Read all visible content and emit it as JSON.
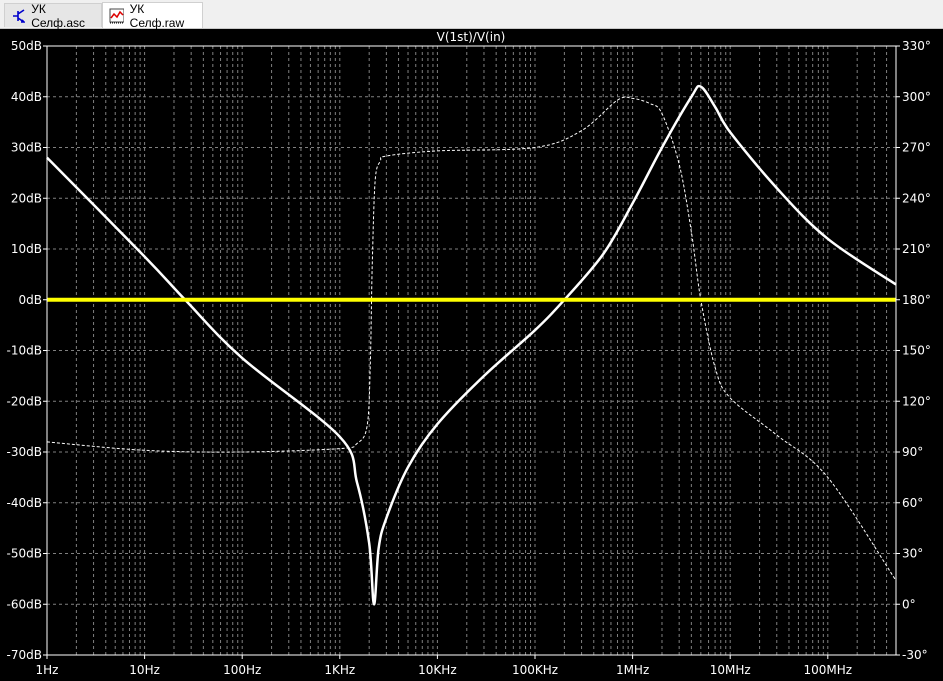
{
  "tabs": [
    {
      "label": "УК Селф.asc",
      "icon": "schematic-transistor-icon",
      "active": false
    },
    {
      "label": "УК Селф.raw",
      "icon": "waveform-icon",
      "active": true
    }
  ],
  "chart_data": {
    "type": "line",
    "title": "V(1st)/V(in)",
    "x_scale": "log",
    "xlim_hz": [
      1,
      500000000
    ],
    "x_ticks": [
      {
        "v": 1,
        "label": "1Hz"
      },
      {
        "v": 10,
        "label": "10Hz"
      },
      {
        "v": 100,
        "label": "100Hz"
      },
      {
        "v": 1000,
        "label": "1KHz"
      },
      {
        "v": 10000,
        "label": "10KHz"
      },
      {
        "v": 100000,
        "label": "100KHz"
      },
      {
        "v": 1000000,
        "label": "1MHz"
      },
      {
        "v": 10000000,
        "label": "10MHz"
      },
      {
        "v": 100000000,
        "label": "100MHz"
      }
    ],
    "y_left": {
      "unit": "dB",
      "range": [
        -70,
        50
      ],
      "ticks": [
        "50dB",
        "40dB",
        "30dB",
        "20dB",
        "10dB",
        "0dB",
        "-10dB",
        "-20dB",
        "-30dB",
        "-40dB",
        "-50dB",
        "-60dB",
        "-70dB"
      ]
    },
    "y_right": {
      "unit": "°",
      "range": [
        -30,
        330
      ],
      "ticks": [
        "330°",
        "300°",
        "270°",
        "240°",
        "210°",
        "180°",
        "150°",
        "120°",
        "90°",
        "60°",
        "30°",
        "0°",
        "-30°"
      ]
    },
    "grid": true,
    "background": "#000000",
    "series": [
      {
        "kind": "magnitude",
        "color": "#ffffff",
        "style": "solid",
        "axis": "left",
        "x": [
          1,
          10,
          26,
          100,
          1000,
          1500,
          2000,
          2240,
          2500,
          3000,
          5000,
          10000,
          30000,
          100000,
          200000,
          500000,
          1000000,
          2000000,
          4000000,
          5000000,
          7000000,
          10000000,
          30000000,
          100000000,
          500000000
        ],
        "y": [
          28,
          8.5,
          0,
          -11.5,
          -27,
          -36,
          -48,
          -60,
          -49,
          -43,
          -33,
          -24.5,
          -15,
          -6,
          0,
          9,
          19,
          30,
          40,
          42,
          38,
          33,
          22,
          12,
          3
        ]
      },
      {
        "kind": "phase",
        "color": "#ffffff",
        "style": "dashed",
        "axis": "right",
        "x": [
          1,
          10,
          100,
          1000,
          1500,
          1900,
          2050,
          2150,
          2300,
          2600,
          3000,
          10000,
          100000,
          300000,
          700000,
          1000000,
          1500000,
          2000000,
          3000000,
          4000000,
          5000000,
          7000000,
          10000000,
          30000000,
          100000000,
          500000000
        ],
        "y": [
          96,
          91,
          90,
          92,
          95,
          105,
          140,
          200,
          250,
          262,
          265,
          268,
          270,
          280,
          298,
          299,
          296,
          290,
          260,
          220,
          180,
          140,
          122,
          100,
          75,
          14
        ]
      },
      {
        "kind": "reference",
        "color": "#ffff00",
        "style": "solid",
        "axis": "left",
        "x": [
          1,
          500000000
        ],
        "y": [
          0,
          0
        ]
      }
    ]
  }
}
